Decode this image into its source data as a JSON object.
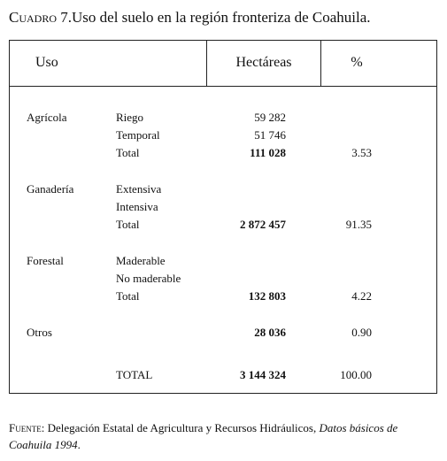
{
  "title": {
    "label": "Cuadro 7.",
    "text": "Uso del suelo en la región fronteriza de Coahuila."
  },
  "table": {
    "header": [
      "Uso",
      "Hectáreas",
      "%"
    ],
    "groups": [
      {
        "label": "Agrícola",
        "rows": [
          {
            "item": "Riego",
            "hectareas": "59 282"
          },
          {
            "item": "Temporal",
            "hectareas": "51 746"
          },
          {
            "item": "Total",
            "hectareas": "111 028",
            "percent": "3.53"
          }
        ]
      },
      {
        "label": "Ganadería",
        "rows": [
          {
            "item": "Extensiva"
          },
          {
            "item": "Intensiva"
          },
          {
            "item": "Total",
            "hectareas": "2 872 457",
            "percent": "91.35"
          }
        ]
      },
      {
        "label": "Forestal",
        "rows": [
          {
            "item": "Maderable"
          },
          {
            "item": "No maderable"
          },
          {
            "item": "Total",
            "hectareas": "132 803",
            "percent": "4.22"
          }
        ]
      },
      {
        "label": "Otros",
        "rows": [
          {
            "hectareas": "28 036",
            "percent": "0.90"
          }
        ]
      },
      {
        "rows": [
          {
            "item": "TOTAL",
            "hectareas": "3 144 324",
            "percent": "100.00"
          }
        ]
      }
    ]
  },
  "footer": {
    "label": "Fuente:",
    "text": "Delegación Estatal de Agricultura y Recursos Hidráulicos, ",
    "source": "Datos básicos de Coahuila 1994",
    "end": "."
  }
}
